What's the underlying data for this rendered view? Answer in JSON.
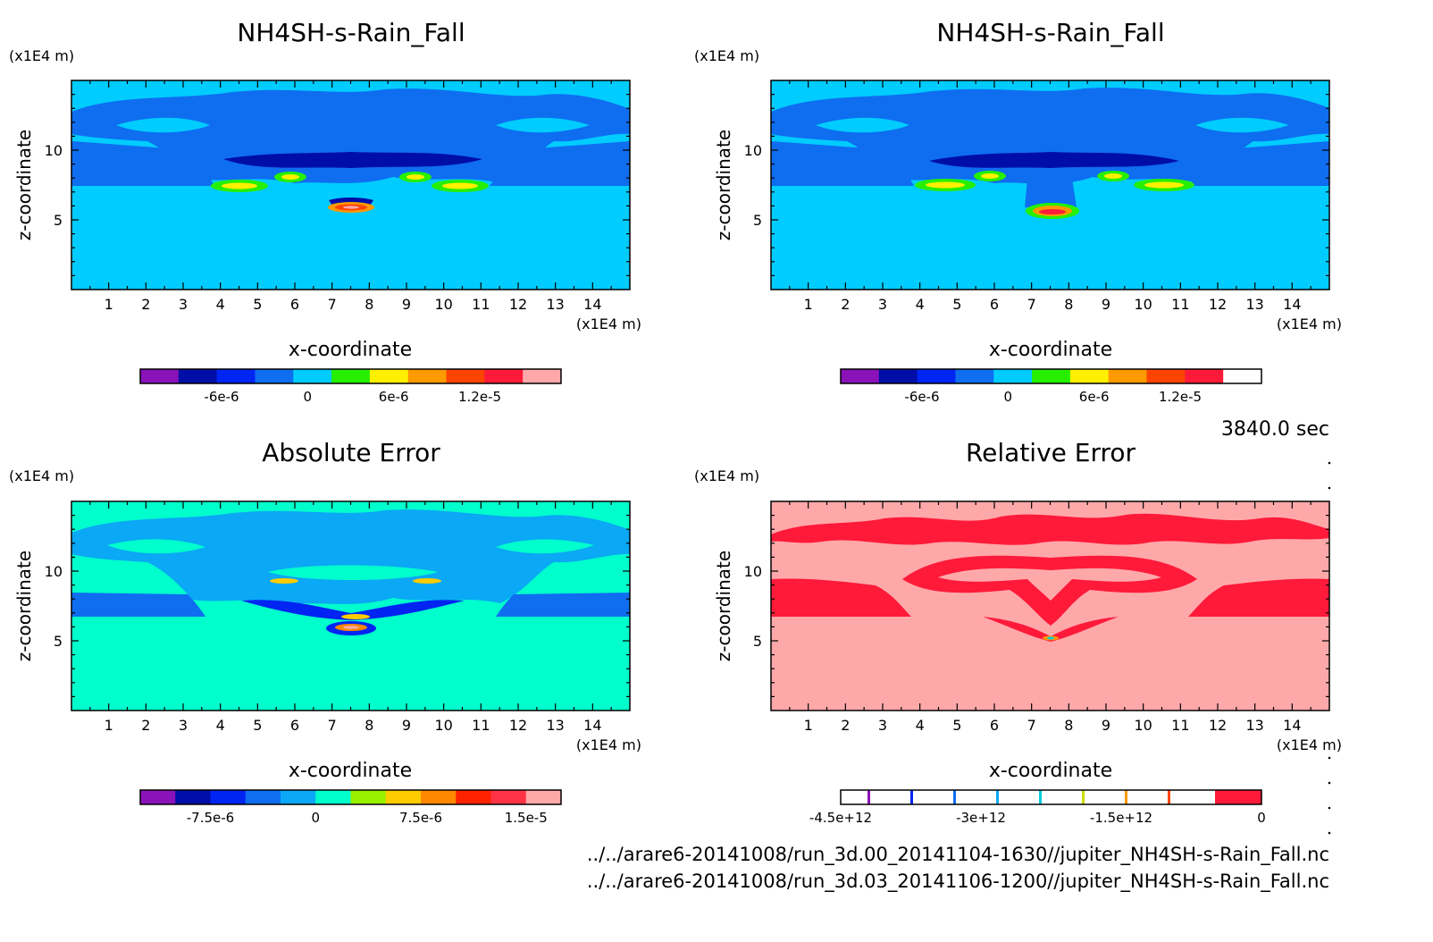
{
  "time_label": "3840.0 sec",
  "file_lines": [
    "../../arare6-20141008/run_3d.00_20141104-1630//jupiter_NH4SH-s-Rain_Fall.nc",
    "../../arare6-20141008/run_3d.03_20141106-1200//jupiter_NH4SH-s-Rain_Fall.nc"
  ],
  "axes": {
    "xlabel": "x-coordinate",
    "ylabel": "z-coordinate",
    "x_unit": "(x1E4 m)",
    "y_unit": "(x1E4 m)",
    "x_range": [
      0,
      15
    ],
    "y_range": [
      0,
      15
    ],
    "x_ticks": [
      "1",
      "2",
      "3",
      "4",
      "5",
      "6",
      "7",
      "8",
      "9",
      "10",
      "11",
      "12",
      "13",
      "14"
    ],
    "y_ticks": [
      "5",
      "10"
    ]
  },
  "chart_data": [
    {
      "type": "heatmap",
      "title": "NH4SH-s-Rain_Fall",
      "field": "run_3d.00",
      "xlabel": "x-coordinate",
      "ylabel": "z-coordinate",
      "xlim": [
        0,
        15
      ],
      "ylim": [
        0,
        15
      ],
      "colorbar": {
        "levels": [
          -9e-06,
          -6e-06,
          -3e-06,
          0,
          3e-06,
          6e-06,
          9e-06,
          1.2e-05,
          1.5e-05
        ],
        "colors": [
          "#8a12b8",
          "#000ea8",
          "#0024f2",
          "#0f6df0",
          "#00ccff",
          "#26f000",
          "#fff000",
          "#ff9900",
          "#ff4400",
          "#ff1a3a",
          "#ffa8aa"
        ],
        "tick_labels": [
          "-6e-6",
          "0",
          "6e-6",
          "1.2e-5"
        ]
      }
    },
    {
      "type": "heatmap",
      "title": "NH4SH-s-Rain_Fall",
      "field": "run_3d.03",
      "xlabel": "x-coordinate",
      "ylabel": "z-coordinate",
      "xlim": [
        0,
        15
      ],
      "ylim": [
        0,
        15
      ],
      "colorbar": {
        "levels": [
          -9e-06,
          -6e-06,
          -3e-06,
          0,
          3e-06,
          6e-06,
          9e-06,
          1.2e-05,
          1.5e-05
        ],
        "colors": [
          "#8a12b8",
          "#000ea8",
          "#0024f2",
          "#0f6df0",
          "#00ccff",
          "#26f000",
          "#fff000",
          "#ff9900",
          "#ff4400",
          "#ff1a3a",
          "#ffffff"
        ],
        "tick_labels": [
          "-6e-6",
          "0",
          "6e-6",
          "1.2e-5"
        ]
      }
    },
    {
      "type": "heatmap",
      "title": "Absolute Error",
      "field": "absolute_error",
      "xlabel": "x-coordinate",
      "ylabel": "z-coordinate",
      "xlim": [
        0,
        15
      ],
      "ylim": [
        0,
        15
      ],
      "colorbar": {
        "levels": [
          -1e-05,
          -7.5e-06,
          -5e-06,
          -2.5e-06,
          0,
          2.5e-06,
          5e-06,
          7.5e-06,
          1e-05,
          1.25e-05,
          1.5e-05
        ],
        "colors": [
          "#8a12b8",
          "#000ea8",
          "#0024f2",
          "#0f6df0",
          "#0aa8f5",
          "#00ffcc",
          "#99f000",
          "#ffcc00",
          "#ff8800",
          "#ff2200",
          "#ff3346",
          "#ffa8aa"
        ],
        "tick_labels": [
          "-7.5e-6",
          "0",
          "7.5e-6",
          "1.5e-5"
        ]
      }
    },
    {
      "type": "heatmap",
      "title": "Relative Error",
      "field": "relative_error",
      "xlabel": "x-coordinate",
      "ylabel": "z-coordinate",
      "xlim": [
        0,
        15
      ],
      "ylim": [
        0,
        15
      ],
      "colorbar": {
        "levels": [
          -4500000000000.0,
          -3000000000000.0,
          -1500000000000.0,
          0
        ],
        "colors": [
          "#8a12b8",
          "#0024f2",
          "#0f6df0",
          "#0aa8f5",
          "#00ccdd",
          "#ccdd00",
          "#ff9900",
          "#ff4400",
          "#ff1a3a",
          "#ffa8aa"
        ],
        "tick_labels": [
          "-4.5e+12",
          "-3e+12",
          "-1.5e+12",
          "0"
        ]
      }
    }
  ]
}
